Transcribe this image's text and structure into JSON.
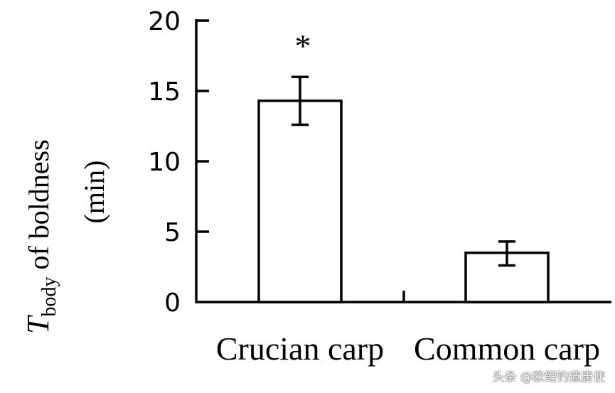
{
  "chart_data": {
    "type": "bar",
    "categories": [
      "Crucian carp",
      "Common carp"
    ],
    "values": [
      14.3,
      3.5
    ],
    "error": [
      [
        12.6,
        16.0
      ],
      [
        2.6,
        4.3
      ]
    ],
    "annotations": [
      "*",
      ""
    ],
    "ylabel_main": "T",
    "ylabel_sub": "body",
    "ylabel_rest": " of boldness",
    "ylabel_unit": "(min)",
    "xlabel": "",
    "ylim": [
      0,
      20
    ],
    "yticks": [
      "0",
      "5",
      "10",
      "15",
      "20"
    ],
    "grid": false,
    "bar_fill": "#ffffff",
    "bar_stroke": "#000000"
  },
  "watermark": "头条 @欧鲤钓遣唐使"
}
